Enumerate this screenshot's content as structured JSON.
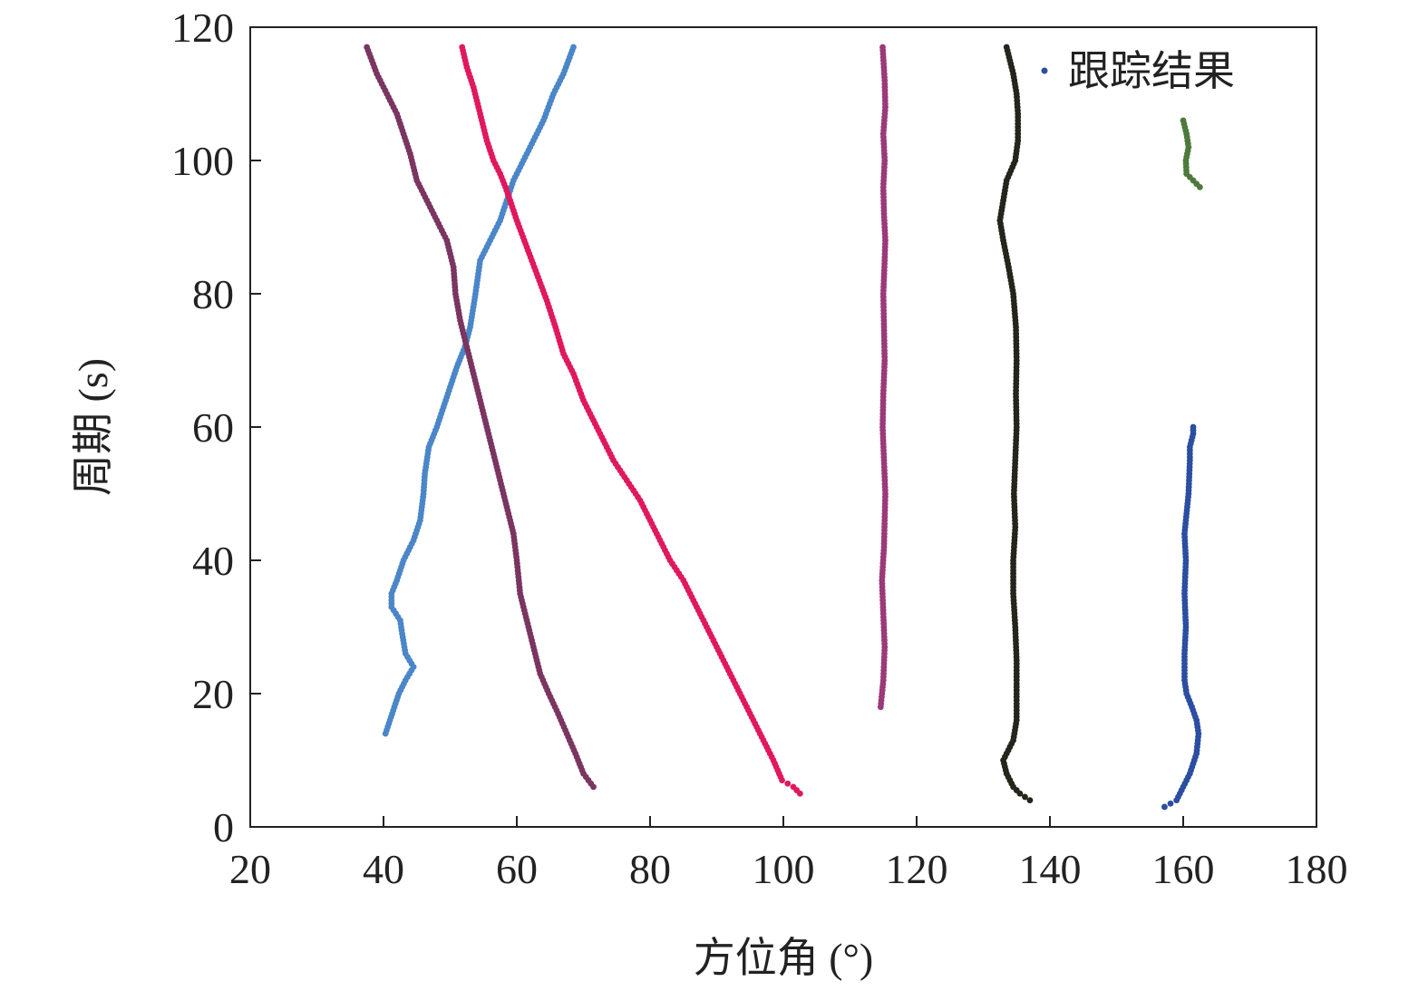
{
  "chart_data": {
    "type": "scatter",
    "title": "",
    "xlabel": "方位角 (°)",
    "ylabel": "周期 (s)",
    "xlim": [
      20,
      180
    ],
    "ylim": [
      0,
      120
    ],
    "x_ticks": [
      20,
      40,
      60,
      80,
      100,
      120,
      140,
      160,
      180
    ],
    "y_ticks": [
      0,
      20,
      40,
      60,
      80,
      100,
      120
    ],
    "x_tick_labels": [
      "20",
      "40",
      "60",
      "80",
      "100",
      "120",
      "140",
      "160",
      "180"
    ],
    "y_tick_labels": [
      "0",
      "20",
      "40",
      "60",
      "80",
      "100",
      "120"
    ],
    "grid": false,
    "legend": {
      "position": "top-right",
      "label": "跟踪结果",
      "color": "#2b4ea0"
    },
    "series": [
      {
        "color": "#4a86c8",
        "points": [
          [
            40.3,
            14
          ],
          [
            41.3,
            17
          ],
          [
            42.3,
            20
          ],
          [
            43.3,
            22
          ],
          [
            44.5,
            24
          ],
          [
            43.3,
            26
          ],
          [
            42.8,
            29
          ],
          [
            42.5,
            31
          ],
          [
            41.2,
            33
          ],
          [
            41.2,
            35
          ],
          [
            42.0,
            37
          ],
          [
            43.0,
            40
          ],
          [
            44.5,
            43
          ],
          [
            45.5,
            46
          ],
          [
            46.0,
            50
          ],
          [
            46.2,
            53
          ],
          [
            46.8,
            57
          ],
          [
            48.0,
            60
          ],
          [
            49.0,
            63
          ],
          [
            50.0,
            66
          ],
          [
            51.0,
            69
          ],
          [
            52.2,
            72
          ],
          [
            53.0,
            75
          ],
          [
            53.8,
            80
          ],
          [
            54.5,
            85
          ],
          [
            56.0,
            88
          ],
          [
            57.5,
            91
          ],
          [
            58.5,
            94
          ],
          [
            59.5,
            97
          ],
          [
            61.0,
            100
          ],
          [
            62.5,
            103
          ],
          [
            64.0,
            106
          ],
          [
            65.5,
            110
          ],
          [
            67.0,
            113
          ],
          [
            68.5,
            117
          ]
        ],
        "step": 0.5
      },
      {
        "color": "#7a3560",
        "points": [
          [
            71.5,
            6
          ],
          [
            70.0,
            8
          ],
          [
            68.8,
            11
          ],
          [
            67.5,
            14
          ],
          [
            66.2,
            17
          ],
          [
            64.8,
            20
          ],
          [
            63.5,
            23
          ],
          [
            62.5,
            27
          ],
          [
            61.5,
            31
          ],
          [
            60.5,
            35
          ],
          [
            60.0,
            40
          ],
          [
            59.5,
            44
          ],
          [
            58.5,
            48
          ],
          [
            57.5,
            52
          ],
          [
            56.5,
            56
          ],
          [
            55.5,
            60
          ],
          [
            54.5,
            64
          ],
          [
            53.5,
            68
          ],
          [
            52.5,
            72
          ],
          [
            51.5,
            76
          ],
          [
            50.8,
            80
          ],
          [
            50.5,
            84
          ],
          [
            49.5,
            88
          ],
          [
            48.5,
            90
          ],
          [
            46.5,
            94
          ],
          [
            45.0,
            97
          ],
          [
            44.0,
            101
          ],
          [
            43.0,
            104
          ],
          [
            42.0,
            107
          ],
          [
            40.5,
            110
          ],
          [
            39.0,
            113
          ],
          [
            37.5,
            117
          ]
        ],
        "step": 0.5
      },
      {
        "color": "#e0185e",
        "points": [
          [
            102.5,
            5
          ],
          [
            101.5,
            6
          ],
          [
            99.8,
            7
          ],
          [
            98.5,
            10
          ],
          [
            97.0,
            13
          ],
          [
            95.5,
            16
          ],
          [
            94.0,
            19
          ],
          [
            92.5,
            22
          ],
          [
            91.0,
            25
          ],
          [
            89.5,
            28
          ],
          [
            88.0,
            31
          ],
          [
            86.5,
            34
          ],
          [
            85.0,
            37
          ],
          [
            83.0,
            40
          ],
          [
            81.5,
            43
          ],
          [
            80.0,
            46
          ],
          [
            78.5,
            49
          ],
          [
            76.5,
            52
          ],
          [
            74.5,
            55
          ],
          [
            73.0,
            58
          ],
          [
            71.5,
            61
          ],
          [
            70.0,
            64
          ],
          [
            68.5,
            68
          ],
          [
            67.0,
            71
          ],
          [
            65.8,
            75
          ],
          [
            64.5,
            79
          ],
          [
            63.0,
            83
          ],
          [
            61.5,
            87
          ],
          [
            60.0,
            91
          ],
          [
            59.0,
            94
          ],
          [
            58.3,
            96
          ],
          [
            57.5,
            98
          ],
          [
            56.5,
            100
          ],
          [
            55.5,
            103
          ],
          [
            54.5,
            107
          ],
          [
            53.5,
            111
          ],
          [
            52.5,
            114
          ],
          [
            51.8,
            117
          ]
        ],
        "step": 0.5
      },
      {
        "color": "#9b3a7a",
        "points": [
          [
            114.6,
            18
          ],
          [
            115.0,
            22
          ],
          [
            115.2,
            27
          ],
          [
            115.0,
            32
          ],
          [
            114.8,
            37
          ],
          [
            115.1,
            42
          ],
          [
            115.2,
            46
          ],
          [
            115.3,
            50
          ],
          [
            115.1,
            55
          ],
          [
            114.9,
            60
          ],
          [
            115.0,
            65
          ],
          [
            115.2,
            70
          ],
          [
            115.1,
            75
          ],
          [
            115.0,
            80
          ],
          [
            115.2,
            85
          ],
          [
            115.3,
            88
          ],
          [
            115.1,
            92
          ],
          [
            115.0,
            96
          ],
          [
            115.2,
            100
          ],
          [
            115.0,
            104
          ],
          [
            115.3,
            108
          ],
          [
            115.2,
            112
          ],
          [
            114.9,
            117
          ]
        ],
        "step": 0.5
      },
      {
        "color": "#25251c",
        "points": [
          [
            137.0,
            4
          ],
          [
            135.5,
            5
          ],
          [
            134.5,
            6
          ],
          [
            133.5,
            8
          ],
          [
            133.0,
            10
          ],
          [
            133.5,
            11
          ],
          [
            134.5,
            13
          ],
          [
            135.0,
            16
          ],
          [
            135.0,
            20
          ],
          [
            135.0,
            25
          ],
          [
            134.8,
            30
          ],
          [
            134.5,
            35
          ],
          [
            134.5,
            40
          ],
          [
            134.8,
            45
          ],
          [
            134.6,
            50
          ],
          [
            134.8,
            55
          ],
          [
            135.0,
            60
          ],
          [
            134.9,
            65
          ],
          [
            135.0,
            70
          ],
          [
            134.9,
            75
          ],
          [
            134.5,
            80
          ],
          [
            133.8,
            84
          ],
          [
            133.0,
            88
          ],
          [
            132.5,
            91
          ],
          [
            133.0,
            94
          ],
          [
            133.5,
            97
          ],
          [
            134.8,
            100
          ],
          [
            135.2,
            103
          ],
          [
            135.2,
            107
          ],
          [
            135.0,
            110
          ],
          [
            134.5,
            113
          ],
          [
            133.5,
            117
          ]
        ],
        "step": 0.5
      },
      {
        "color": "#2b4ea0",
        "points": [
          [
            157.2,
            3
          ],
          [
            159.0,
            4
          ],
          [
            160.0,
            6
          ],
          [
            161.0,
            8
          ],
          [
            162.0,
            11
          ],
          [
            162.3,
            14
          ],
          [
            162.0,
            16
          ],
          [
            161.3,
            18
          ],
          [
            160.5,
            20
          ],
          [
            160.2,
            22
          ],
          [
            160.2,
            26
          ],
          [
            160.4,
            30
          ],
          [
            160.2,
            35
          ],
          [
            160.4,
            40
          ],
          [
            160.2,
            44
          ],
          [
            160.5,
            47
          ],
          [
            160.8,
            50
          ],
          [
            161.0,
            55
          ],
          [
            161.0,
            57
          ],
          [
            161.5,
            59
          ],
          [
            161.5,
            60
          ]
        ],
        "step": 0.5
      },
      {
        "color": "#4d7a3c",
        "points": [
          [
            162.5,
            96
          ],
          [
            161.5,
            97
          ],
          [
            160.5,
            98
          ],
          [
            160.4,
            100
          ],
          [
            160.8,
            102
          ],
          [
            160.5,
            104
          ],
          [
            160.0,
            106
          ]
        ],
        "step": 0.5
      }
    ]
  }
}
